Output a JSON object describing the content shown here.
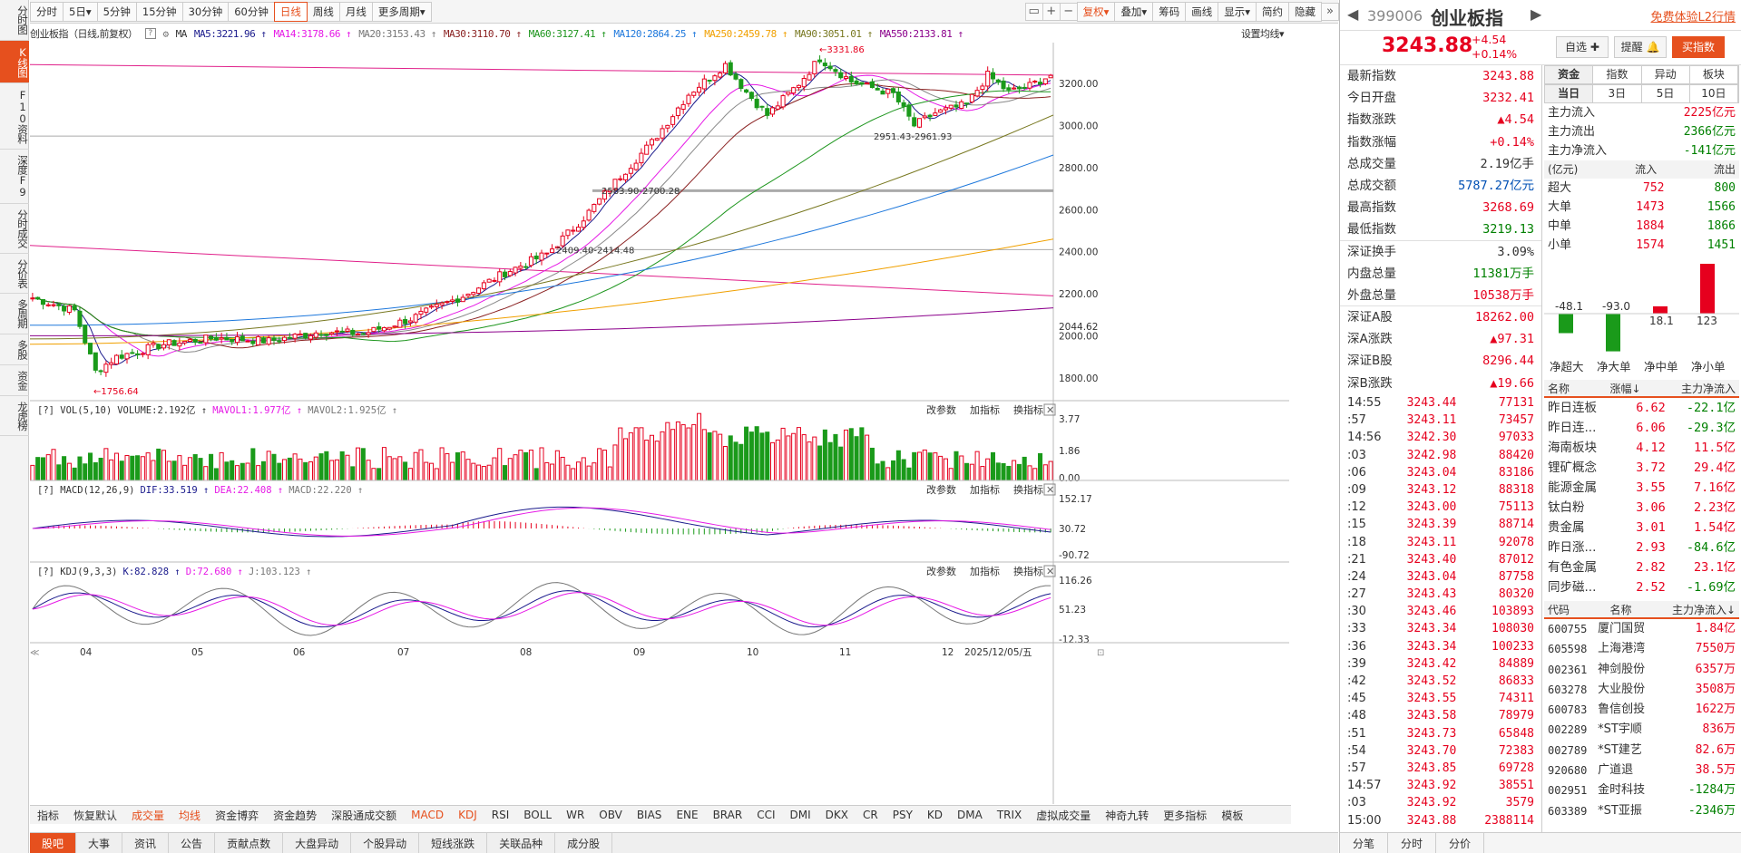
{
  "left_nav": [
    "分时图",
    "K线图",
    "F10资料",
    "深度F9",
    "分时成交",
    "分价表",
    "多周期",
    "多股",
    "资金",
    "龙虎榜"
  ],
  "toolbar": {
    "periods": [
      "分时",
      "5日▾",
      "5分钟",
      "15分钟",
      "30分钟",
      "60分钟",
      "日线",
      "周线",
      "月线",
      "更多周期▾"
    ],
    "active": "日线",
    "right": [
      "复权▾",
      "叠加▾",
      "筹码",
      "画线",
      "显示▾",
      "简约",
      "隐藏"
    ],
    "icons": [
      "▭",
      "+",
      "−"
    ]
  },
  "legend": {
    "name": "创业板指（日线,前复权）",
    "ma": "MA",
    "items": [
      {
        "t": "MA5:3221.96",
        "c": "#1a1a8c"
      },
      {
        "t": "MA14:3178.66",
        "c": "#e619e6"
      },
      {
        "t": "MA20:3153.43",
        "c": "#777777"
      },
      {
        "t": "MA30:3110.70",
        "c": "#8b2222"
      },
      {
        "t": "MA60:3127.41",
        "c": "#1e961e"
      },
      {
        "t": "MA120:2864.25",
        "c": "#1e78dc"
      },
      {
        "t": "MA250:2459.78",
        "c": "#f0a000"
      },
      {
        "t": "MA90:3051.01",
        "c": "#787820"
      },
      {
        "t": "MA550:2133.81",
        "c": "#8b008b"
      }
    ],
    "settings": "设置均线▾"
  },
  "price_axis": [
    "3200.00",
    "3000.00",
    "2800.00",
    "2600.00",
    "2400.00",
    "2200.00",
    "2044.62",
    "2000.00",
    "1800.00"
  ],
  "annotations": [
    "3331.86",
    "2951.43-2961.93",
    "2583.90-2700.28",
    "2409.40-2414.48",
    "1756.64"
  ],
  "vol": {
    "label": "VOL(5,10)",
    "v": "VOLUME:2.192亿",
    "m1": "MAVOL1:1.977亿",
    "m2": "MAVOL2:1.925亿",
    "axis": [
      "3.77",
      "1.86",
      "0.00"
    ]
  },
  "macd": {
    "label": "MACD(12,26,9)",
    "dif": "DIF:33.519",
    "dea": "DEA:22.408",
    "macd": "MACD:22.220",
    "axis": [
      "152.17",
      "30.72",
      "-90.72"
    ]
  },
  "kdj": {
    "label": "KDJ(9,3,3)",
    "k": "K:82.828",
    "d": "D:72.680",
    "j": "J:103.123",
    "axis": [
      "116.26",
      "51.23",
      "-12.33"
    ]
  },
  "panel_btns": [
    "改参数",
    "加指标",
    "换指标"
  ],
  "x_axis": [
    "04",
    "05",
    "06",
    "07",
    "08",
    "09",
    "10",
    "11",
    "12",
    "2025/12/05/五"
  ],
  "bottom_ind": [
    "指标",
    "恢复默认",
    "成交量",
    "均线",
    "资金博弈",
    "资金趋势",
    "深股通成交额",
    "MACD",
    "KDJ",
    "RSI",
    "BOLL",
    "WR",
    "OBV",
    "BIAS",
    "ENE",
    "BRAR",
    "CCI",
    "DMI",
    "DKX",
    "CR",
    "PSY",
    "KD",
    "DMA",
    "TRIX",
    "虚拟成交量",
    "神奇九转",
    "更多指标",
    "模板"
  ],
  "bottom_tabs": [
    "股吧",
    "大事",
    "资讯",
    "公告",
    "贡献点数",
    "大盘异动",
    "个股异动",
    "短线涨跌",
    "关联品种",
    "成分股"
  ],
  "right": {
    "code": "399006",
    "name": "创业板指",
    "price": "3243.88",
    "chg": "+4.54",
    "pct": "+0.14%",
    "trial": "免费体验L2行情",
    "btns": [
      "自选",
      "提醒",
      "买指数"
    ],
    "stats": [
      [
        "最新指数",
        "3243.88",
        "red"
      ],
      [
        "今日开盘",
        "3232.41",
        "red"
      ],
      [
        "指数涨跌",
        "▲4.54",
        "red"
      ],
      [
        "指数涨幅",
        "+0.14%",
        "red"
      ],
      [
        "总成交量",
        "2.19亿手",
        ""
      ],
      [
        "总成交额",
        "5787.27亿元",
        "blue"
      ],
      [
        "最高指数",
        "3268.69",
        "red"
      ],
      [
        "最低指数",
        "3219.13",
        "green"
      ],
      [
        "深证换手",
        "3.09%",
        ""
      ],
      [
        "内盘总量",
        "11381万手",
        "green"
      ],
      [
        "外盘总量",
        "10538万手",
        "red"
      ],
      [
        "深证A股",
        "18262.00",
        "red"
      ],
      [
        "深A涨跌",
        "▲97.31",
        "red"
      ],
      [
        "深证B股",
        "8296.44",
        "red"
      ],
      [
        "深B涨跌",
        "▲19.66",
        "red"
      ]
    ],
    "ticks": [
      [
        "14:55",
        "3243.44",
        "77131"
      ],
      [
        ":57",
        "3243.11",
        "73457"
      ],
      [
        "14:56",
        "3242.30",
        "97033"
      ],
      [
        ":03",
        "3242.98",
        "88420"
      ],
      [
        ":06",
        "3243.04",
        "83186"
      ],
      [
        ":09",
        "3243.12",
        "88318"
      ],
      [
        ":12",
        "3243.00",
        "75113"
      ],
      [
        ":15",
        "3243.39",
        "88714"
      ],
      [
        ":18",
        "3243.11",
        "92078"
      ],
      [
        ":21",
        "3243.40",
        "87012"
      ],
      [
        ":24",
        "3243.04",
        "87758"
      ],
      [
        ":27",
        "3243.43",
        "80320"
      ],
      [
        ":30",
        "3243.46",
        "103893"
      ],
      [
        ":33",
        "3243.34",
        "108030"
      ],
      [
        ":36",
        "3243.34",
        "100233"
      ],
      [
        ":39",
        "3243.42",
        "84889"
      ],
      [
        ":42",
        "3243.52",
        "86833"
      ],
      [
        ":45",
        "3243.55",
        "74311"
      ],
      [
        ":48",
        "3243.58",
        "78979"
      ],
      [
        ":51",
        "3243.73",
        "65848"
      ],
      [
        ":54",
        "3243.70",
        "72383"
      ],
      [
        ":57",
        "3243.85",
        "69728"
      ],
      [
        "14:57",
        "3243.92",
        "38551"
      ],
      [
        ":03",
        "3243.92",
        "3579"
      ],
      [
        "15:00",
        "3243.88",
        "2388114"
      ]
    ],
    "flow_tabs": [
      "资金",
      "指数",
      "异动",
      "板块"
    ],
    "flow_sub": [
      "当日",
      "3日",
      "5日",
      "10日"
    ],
    "flow": [
      [
        "主力流入",
        "2225亿元",
        "red"
      ],
      [
        "主力流出",
        "2366亿元",
        "green"
      ],
      [
        "主力净流入",
        "-141亿元",
        "green"
      ]
    ],
    "flow_head": [
      "(亿元)",
      "流入",
      "流出"
    ],
    "flow_tbl": [
      [
        "超大",
        "752",
        "800"
      ],
      [
        "大单",
        "1473",
        "1566"
      ],
      [
        "中单",
        "1884",
        "1866"
      ],
      [
        "小单",
        "1574",
        "1451"
      ]
    ],
    "bars": [
      {
        "n": "净超大",
        "v": "-48.1"
      },
      {
        "n": "净大单",
        "v": "-93.0"
      },
      {
        "n": "净中单",
        "v": "18.1"
      },
      {
        "n": "净小单",
        "v": "123"
      }
    ],
    "sec_head": [
      "名称",
      "涨幅↓",
      "主力净流入"
    ],
    "sectors": [
      [
        "昨日连板",
        "6.62",
        "-22.1亿"
      ],
      [
        "昨日连...",
        "6.06",
        "-29.3亿"
      ],
      [
        "海南板块",
        "4.12",
        "11.5亿"
      ],
      [
        "锂矿概念",
        "3.72",
        "29.4亿"
      ],
      [
        "能源金属",
        "3.55",
        "7.16亿"
      ],
      [
        "钛白粉",
        "3.06",
        "2.23亿"
      ],
      [
        "贵金属",
        "3.01",
        "1.54亿"
      ],
      [
        "昨日涨...",
        "2.93",
        "-84.6亿"
      ],
      [
        "有色金属",
        "2.82",
        "23.1亿"
      ],
      [
        "同步磁...",
        "2.52",
        "-1.69亿"
      ]
    ],
    "stk_head": [
      "代码",
      "名称",
      "主力净流入↓"
    ],
    "stocks": [
      [
        "600755",
        "厦门国贸",
        "1.84亿"
      ],
      [
        "605598",
        "上海港湾",
        "7550万"
      ],
      [
        "002361",
        "神剑股份",
        "6357万"
      ],
      [
        "603278",
        "大业股份",
        "3508万"
      ],
      [
        "600783",
        "鲁信创投",
        "1622万"
      ],
      [
        "002289",
        "*ST宇顺",
        "836万"
      ],
      [
        "002789",
        "*ST建艺",
        "82.6万"
      ],
      [
        "920680",
        "广道退",
        "38.5万"
      ],
      [
        "002951",
        "金时科技",
        "-1284万"
      ],
      [
        "603389",
        "*ST亚振",
        "-2346万"
      ]
    ],
    "bot_tabs": [
      "分笔",
      "分时",
      "分价"
    ]
  }
}
